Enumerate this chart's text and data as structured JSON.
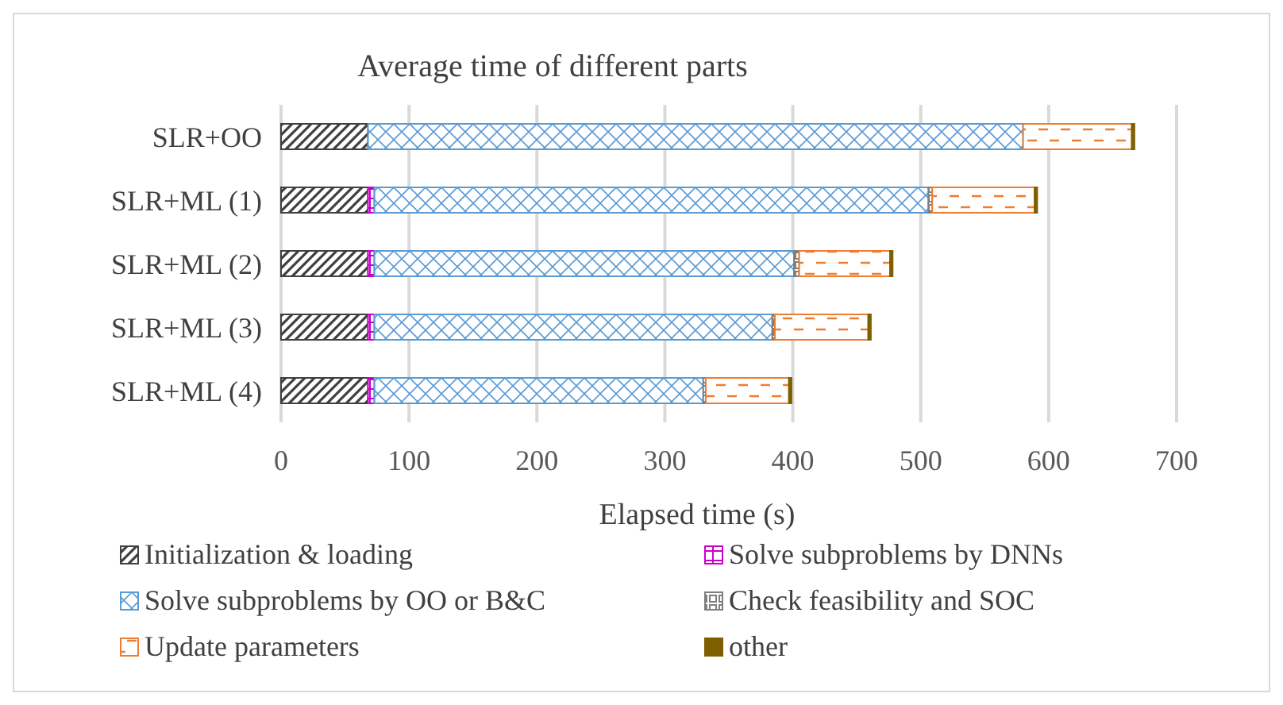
{
  "chart_data": {
    "type": "bar",
    "title": "Average time of different parts",
    "xlabel": "Elapsed time (s)",
    "orientation": "horizontal",
    "stacked": true,
    "grid": "x",
    "legend": "bottom",
    "categories": [
      "SLR+OO",
      "SLR+ML (1)",
      "SLR+ML (2)",
      "SLR+ML (3)",
      "SLR+ML (4)"
    ],
    "xlim": [
      0,
      700
    ],
    "xticks": [
      0,
      100,
      200,
      300,
      400,
      500,
      600,
      700
    ],
    "series": [
      {
        "name": "Initialization & loading",
        "color": "#404040",
        "values": [
          68,
          68,
          68,
          68,
          68
        ]
      },
      {
        "name": "Solve subproblems by DNNs",
        "color": "#cc00cc",
        "values": [
          0,
          5,
          5,
          5,
          5
        ]
      },
      {
        "name": "Solve subproblems by OO or B&C",
        "color": "#5b9bd5",
        "values": [
          512,
          433,
          328,
          311,
          257
        ]
      },
      {
        "name": "Check feasibility and SOC",
        "color": "#7f7f7f",
        "values": [
          0,
          3,
          4,
          2,
          2
        ]
      },
      {
        "name": "Update parameters",
        "color": "#ed7d31",
        "values": [
          85,
          80,
          71,
          73,
          65
        ]
      },
      {
        "name": "other",
        "color": "#7f6000",
        "values": [
          2,
          2,
          2,
          2,
          2
        ]
      }
    ]
  }
}
